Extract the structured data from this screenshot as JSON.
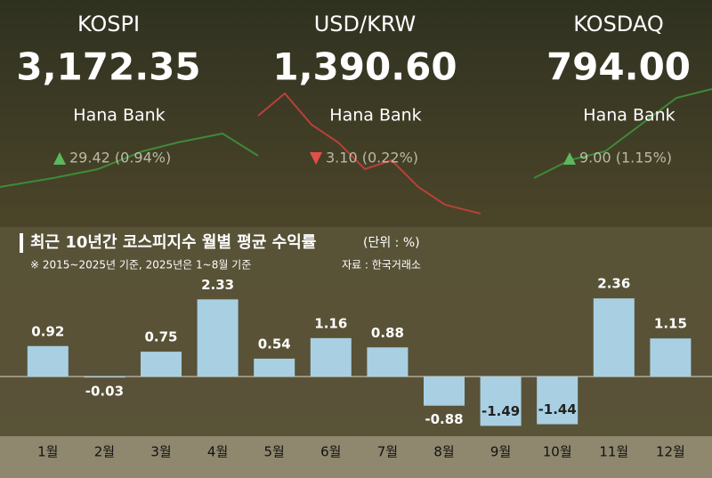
{
  "board": [
    {
      "name": "KOSPI",
      "value": "3,172.35",
      "bank": "Hana Bank",
      "change": "29.42 (0.94%)",
      "direction": "up"
    },
    {
      "name": "USD/KRW",
      "value": "1,390.60",
      "bank": "Hana Bank",
      "change": "3.10 (0.22%)",
      "direction": "down"
    },
    {
      "name": "KOSDAQ",
      "value": "794.00",
      "bank": "Hana Bank",
      "change": "9.00 (1.15%)",
      "direction": "up"
    }
  ],
  "chart_data": {
    "type": "bar",
    "title": "최근 10년간 코스피지수 월별 평균 수익률",
    "unit": "(단위 : %)",
    "subtitle": "※ 2015~2025년 기준, 2025년은 1~8월 기준",
    "source": "자료 : 한국거래소",
    "categories": [
      "1월",
      "2월",
      "3월",
      "4월",
      "5월",
      "6월",
      "7월",
      "8월",
      "9월",
      "10월",
      "11월",
      "12월"
    ],
    "values": [
      0.92,
      -0.03,
      0.75,
      2.33,
      0.54,
      1.16,
      0.88,
      -0.88,
      -1.49,
      -1.44,
      2.36,
      1.15
    ],
    "color": "#a8d0e2"
  }
}
